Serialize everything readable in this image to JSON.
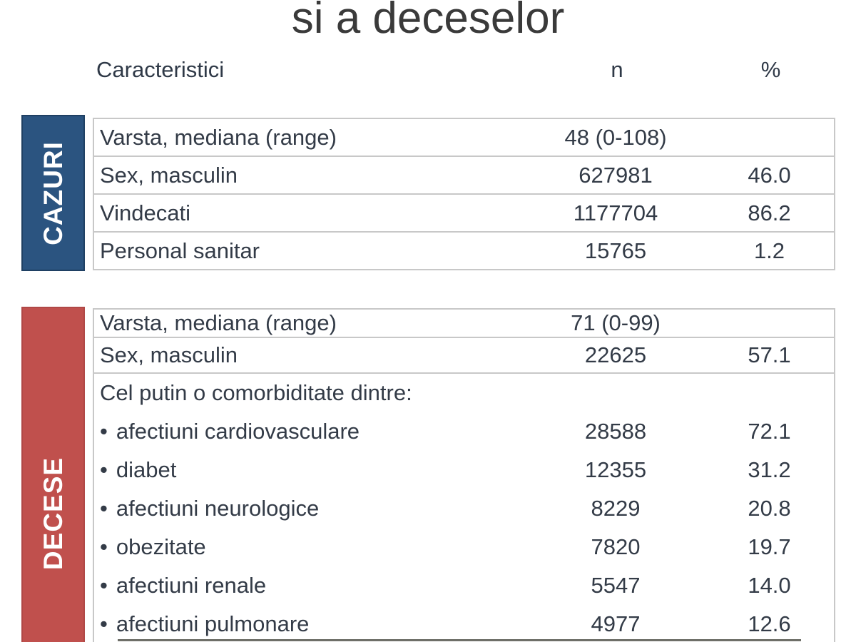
{
  "title": "si a deceselor",
  "columns": {
    "caracteristici": "Caracteristici",
    "n": "n",
    "pct": "%"
  },
  "colors": {
    "cazuri_box": "#2b5480",
    "decese_box": "#c0504d",
    "border": "#c8c8c8",
    "text": "#333b47"
  },
  "cazuri": {
    "label": "CAZURI",
    "rows": [
      {
        "label": "Varsta, mediana (range)",
        "n": "48 (0-108)",
        "pct": ""
      },
      {
        "label": "Sex, masculin",
        "n": "627981",
        "pct": "46.0"
      },
      {
        "label": "Vindecati",
        "n": "1177704",
        "pct": "86.2"
      },
      {
        "label": "Personal sanitar",
        "n": "15765",
        "pct": "1.2"
      }
    ]
  },
  "decese": {
    "label": "DECESE",
    "rows": [
      {
        "label": "Varsta, mediana (range)",
        "n": "71 (0-99)",
        "pct": ""
      },
      {
        "label": "Sex, masculin",
        "n": "22625",
        "pct": "57.1"
      }
    ],
    "comorbidity_header": "Cel putin o comorbiditate dintre:",
    "bullet": "•",
    "comorbidities": [
      {
        "label": "afectiuni cardiovasculare",
        "n": "28588",
        "pct": "72.1"
      },
      {
        "label": "diabet",
        "n": "12355",
        "pct": "31.2"
      },
      {
        "label": "afectiuni neurologice",
        "n": "8229",
        "pct": "20.8"
      },
      {
        "label": "obezitate",
        "n": "7820",
        "pct": "19.7"
      },
      {
        "label": "afectiuni renale",
        "n": "5547",
        "pct": "14.0"
      },
      {
        "label": "afectiuni pulmonare",
        "n": "4977",
        "pct": "12.6"
      }
    ]
  }
}
